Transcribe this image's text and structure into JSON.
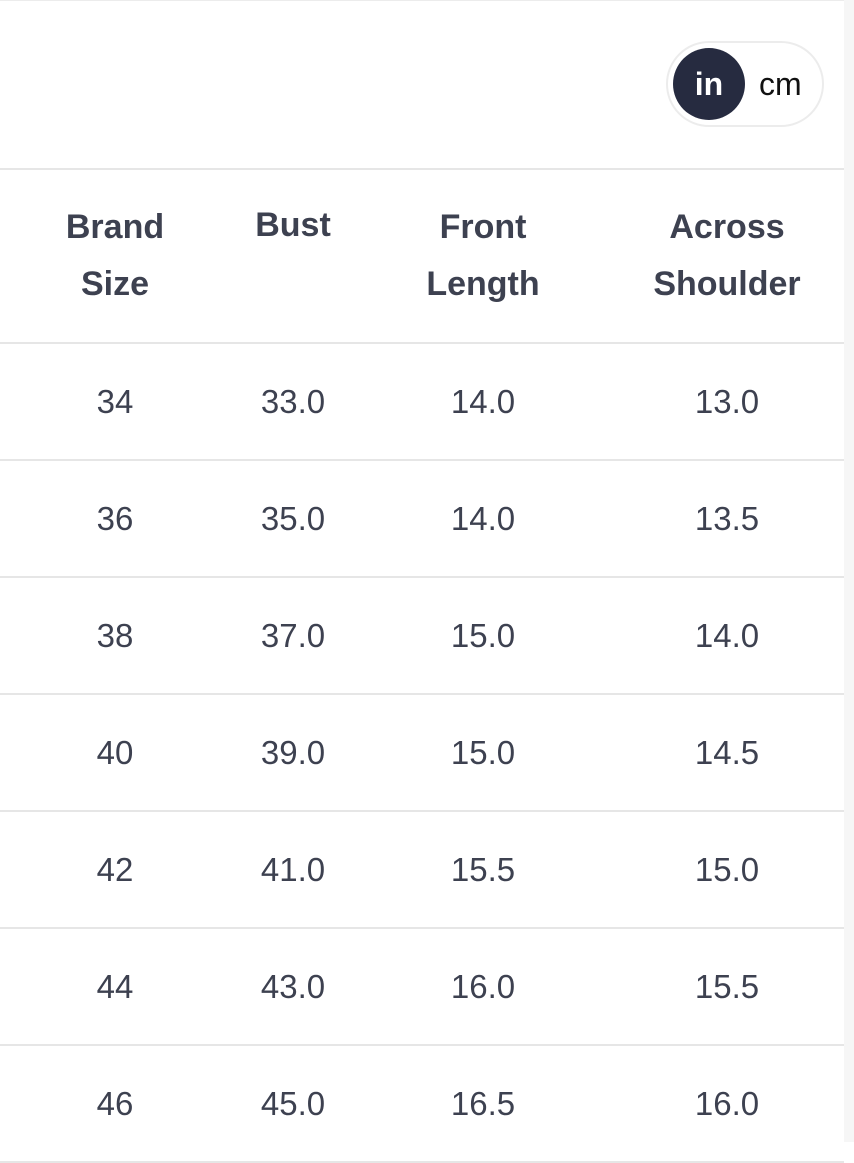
{
  "unit_toggle": {
    "options": [
      "in",
      "cm"
    ],
    "selected": "in",
    "active_color": "#262b40"
  },
  "table": {
    "headers": [
      [
        "Brand",
        "Size"
      ],
      [
        "Bust",
        ""
      ],
      [
        "Front",
        "Length"
      ],
      [
        "Across",
        "Shoulder"
      ]
    ],
    "rows": [
      [
        "34",
        "33.0",
        "14.0",
        "13.0"
      ],
      [
        "36",
        "35.0",
        "14.0",
        "13.5"
      ],
      [
        "38",
        "37.0",
        "15.0",
        "14.0"
      ],
      [
        "40",
        "39.0",
        "15.0",
        "14.5"
      ],
      [
        "42",
        "41.0",
        "15.5",
        "15.0"
      ],
      [
        "44",
        "43.0",
        "16.0",
        "15.5"
      ],
      [
        "46",
        "45.0",
        "16.5",
        "16.0"
      ]
    ]
  }
}
